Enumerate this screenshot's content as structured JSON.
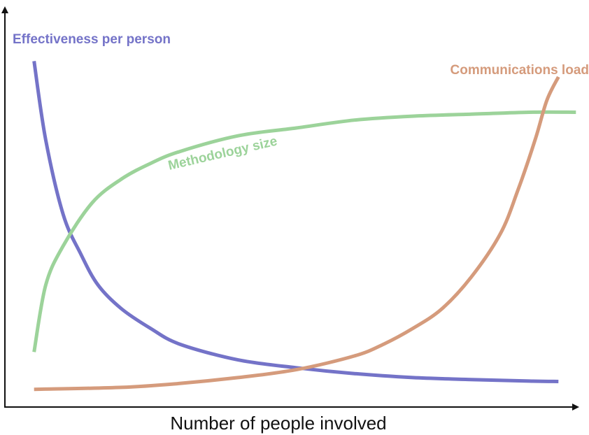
{
  "chart_data": {
    "type": "line",
    "xlabel": "Number of people involved",
    "ylabel": "",
    "title": "",
    "grid": false,
    "legend": "none (inline series labels)",
    "xlim": [
      0,
      100
    ],
    "ylim": [
      0,
      100
    ],
    "series": [
      {
        "name": "Effectiveness per person",
        "color": "#7473c8",
        "x": [
          5,
          7,
          10,
          13,
          16,
          20,
          25,
          30,
          40,
          50,
          60,
          70,
          80,
          90,
          95
        ],
        "y": [
          88,
          68,
          49,
          39,
          31,
          25,
          20,
          16,
          12,
          10,
          8.5,
          7.5,
          7,
          6.6,
          6.5
        ]
      },
      {
        "name": "Methodology size",
        "color": "#9cd39a",
        "x": [
          5,
          7,
          10,
          15,
          20,
          25,
          30,
          40,
          50,
          60,
          70,
          80,
          90,
          98
        ],
        "y": [
          14,
          31,
          41,
          52,
          58,
          62,
          65,
          69,
          71,
          73,
          74,
          74.5,
          75,
          75
        ]
      },
      {
        "name": "Communications load",
        "color": "#d59b7c",
        "x": [
          5,
          20,
          30,
          40,
          50,
          60,
          65,
          70,
          75,
          80,
          85,
          88,
          91,
          93,
          95
        ],
        "y": [
          4.5,
          5,
          6,
          7.5,
          9.5,
          13,
          16,
          20,
          25,
          33,
          44,
          55,
          68,
          78,
          84
        ]
      }
    ]
  }
}
